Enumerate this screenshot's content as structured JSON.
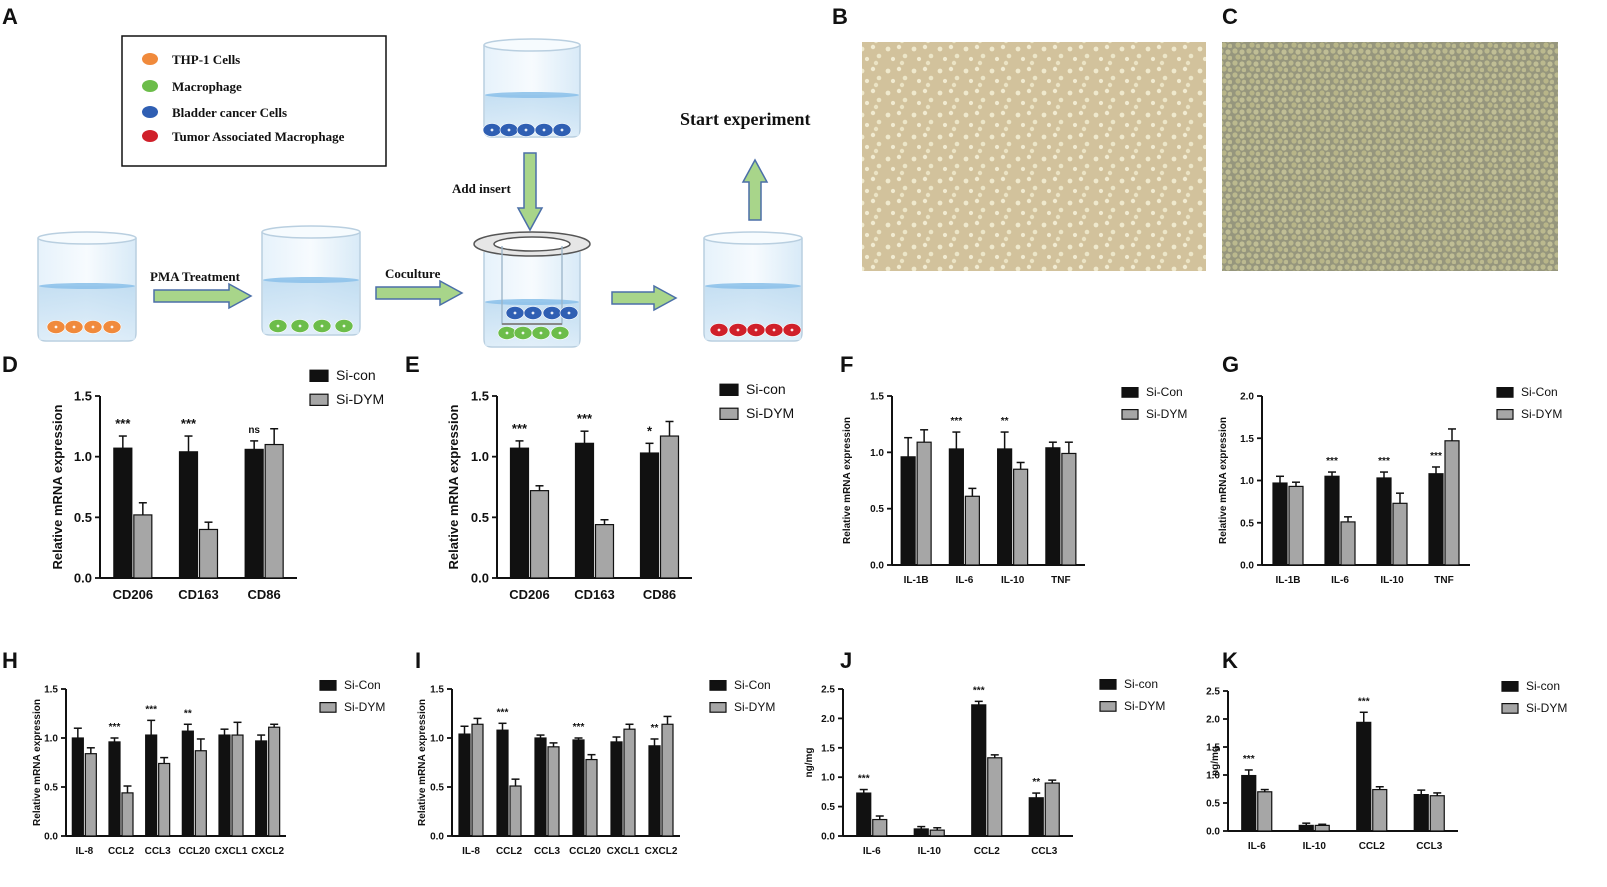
{
  "panel_a": {
    "letter": "A",
    "legend": [
      {
        "label": "THP-1 Cells",
        "color": "#f08a3c"
      },
      {
        "label": "Macrophage",
        "color": "#6cbd4a"
      },
      {
        "label": "Bladder cancer Cells",
        "color": "#2f5fb3"
      },
      {
        "label": "Tumor Associated Macrophage",
        "color": "#d0202a"
      }
    ],
    "labels": {
      "pma": "PMA Treatment",
      "coculture": "Coculture",
      "add_insert": "Add insert",
      "start": "Start experiment"
    }
  },
  "panel_b": {
    "letter": "B"
  },
  "panel_c": {
    "letter": "C"
  },
  "colors": {
    "dark": "#111111",
    "grey": "#a6a6a6",
    "arrow_fill": "#a8d58a",
    "arrow_stroke": "#4b6fa8",
    "micrograph_b": "#d2c29c",
    "micrograph_c": "#9a9a7e"
  },
  "chart_data": [
    {
      "letter": "D",
      "type": "bar",
      "ylabel": "Relative mRNA expression",
      "ylim": [
        0,
        1.5
      ],
      "yticks": [
        "0.0",
        "0.5",
        "1.0",
        "1.5"
      ],
      "categories": [
        "CD206",
        "CD163",
        "CD86"
      ],
      "series": [
        {
          "name": "Si-con",
          "values": [
            1.07,
            1.04,
            1.06
          ],
          "errors": [
            0.1,
            0.13,
            0.07
          ]
        },
        {
          "name": "Si-DYM",
          "values": [
            0.52,
            0.4,
            1.1
          ],
          "errors": [
            0.1,
            0.06,
            0.13
          ]
        }
      ],
      "significance": [
        "***",
        "***",
        "ns"
      ],
      "legend": "right"
    },
    {
      "letter": "E",
      "type": "bar",
      "ylabel": "Relative mRNA expression",
      "ylim": [
        0,
        1.5
      ],
      "yticks": [
        "0.0",
        "0.5",
        "1.0",
        "1.5"
      ],
      "categories": [
        "CD206",
        "CD163",
        "CD86"
      ],
      "series": [
        {
          "name": "Si-con",
          "values": [
            1.07,
            1.11,
            1.03
          ],
          "errors": [
            0.06,
            0.1,
            0.08
          ]
        },
        {
          "name": "Si-DYM",
          "values": [
            0.72,
            0.44,
            1.17
          ],
          "errors": [
            0.04,
            0.04,
            0.12
          ]
        }
      ],
      "significance": [
        "***",
        "***",
        "*"
      ],
      "legend": "right"
    },
    {
      "letter": "F",
      "type": "bar",
      "ylabel": "Relative mRNA expression",
      "ylim": [
        0,
        1.5
      ],
      "yticks": [
        "0.0",
        "0.5",
        "1.0",
        "1.5"
      ],
      "categories": [
        "IL-1B",
        "IL-6",
        "IL-10",
        "TNF"
      ],
      "series": [
        {
          "name": "Si-Con",
          "values": [
            0.96,
            1.03,
            1.03,
            1.04
          ],
          "errors": [
            0.17,
            0.15,
            0.15,
            0.05
          ]
        },
        {
          "name": "Si-DYM",
          "values": [
            1.09,
            0.61,
            0.85,
            0.99
          ],
          "errors": [
            0.11,
            0.07,
            0.06,
            0.1
          ]
        }
      ],
      "significance": [
        "",
        "***",
        "**",
        ""
      ],
      "legend": "right"
    },
    {
      "letter": "G",
      "type": "bar",
      "ylabel": "Relative mRNA expression",
      "ylim": [
        0,
        2.0
      ],
      "yticks": [
        "0.0",
        "0.5",
        "1.0",
        "1.5",
        "2.0"
      ],
      "categories": [
        "IL-1B",
        "IL-6",
        "IL-10",
        "TNF"
      ],
      "series": [
        {
          "name": "Si-Con",
          "values": [
            0.97,
            1.05,
            1.03,
            1.08
          ],
          "errors": [
            0.08,
            0.05,
            0.07,
            0.08
          ]
        },
        {
          "name": "Si-DYM",
          "values": [
            0.93,
            0.51,
            0.73,
            1.47
          ],
          "errors": [
            0.05,
            0.06,
            0.12,
            0.14
          ]
        }
      ],
      "significance": [
        "",
        "***",
        "***",
        "***"
      ],
      "legend": "right"
    },
    {
      "letter": "H",
      "type": "bar",
      "ylabel": "Relative mRNA expression",
      "ylim": [
        0,
        1.5
      ],
      "yticks": [
        "0.0",
        "0.5",
        "1.0",
        "1.5"
      ],
      "categories": [
        "IL-8",
        "CCL2",
        "CCL3",
        "CCL20",
        "CXCL1",
        "CXCL2"
      ],
      "series": [
        {
          "name": "Si-Con",
          "values": [
            1.0,
            0.96,
            1.03,
            1.07,
            1.03,
            0.97
          ],
          "errors": [
            0.1,
            0.04,
            0.15,
            0.07,
            0.06,
            0.06
          ]
        },
        {
          "name": "Si-DYM",
          "values": [
            0.84,
            0.44,
            0.74,
            0.87,
            1.03,
            1.11
          ],
          "errors": [
            0.06,
            0.07,
            0.06,
            0.12,
            0.13,
            0.03
          ]
        }
      ],
      "significance": [
        "",
        "***",
        "***",
        "**",
        "",
        ""
      ],
      "legend": "right"
    },
    {
      "letter": "I",
      "type": "bar",
      "ylabel": "Relative mRNA expression",
      "ylim": [
        0,
        1.5
      ],
      "yticks": [
        "0.0",
        "0.5",
        "1.0",
        "1.5"
      ],
      "categories": [
        "IL-8",
        "CCL2",
        "CCL3",
        "CCL20",
        "CXCL1",
        "CXCL2"
      ],
      "series": [
        {
          "name": "Si-Con",
          "values": [
            1.04,
            1.08,
            1.0,
            0.98,
            0.96,
            0.92
          ],
          "errors": [
            0.08,
            0.07,
            0.03,
            0.02,
            0.05,
            0.07
          ]
        },
        {
          "name": "Si-DYM",
          "values": [
            1.14,
            0.51,
            0.91,
            0.78,
            1.09,
            1.14
          ],
          "errors": [
            0.06,
            0.07,
            0.04,
            0.05,
            0.05,
            0.08
          ]
        }
      ],
      "significance": [
        "",
        "***",
        "",
        "***",
        "",
        "**"
      ],
      "legend": "right"
    },
    {
      "letter": "J",
      "type": "bar",
      "ylabel": "ng/mg",
      "ylim": [
        0,
        2.5
      ],
      "yticks": [
        "0.0",
        "0.5",
        "1.0",
        "1.5",
        "2.0",
        "2.5"
      ],
      "categories": [
        "IL-6",
        "IL-10",
        "CCL2",
        "CCL3"
      ],
      "series": [
        {
          "name": "Si-con",
          "values": [
            0.73,
            0.12,
            2.23,
            0.65
          ],
          "errors": [
            0.06,
            0.04,
            0.06,
            0.08
          ]
        },
        {
          "name": "Si-DYM",
          "values": [
            0.28,
            0.1,
            1.33,
            0.9
          ],
          "errors": [
            0.06,
            0.04,
            0.05,
            0.05
          ]
        }
      ],
      "significance": [
        "***",
        "",
        "***",
        "**"
      ],
      "legend": "right"
    },
    {
      "letter": "K",
      "type": "bar",
      "ylabel": "ng/mg",
      "ylim": [
        0,
        2.5
      ],
      "yticks": [
        "0.0",
        "0.5",
        "1.0",
        "1.5",
        "2.0",
        "2.5"
      ],
      "categories": [
        "IL-6",
        "IL-10",
        "CCL2",
        "CCL3"
      ],
      "series": [
        {
          "name": "Si-con",
          "values": [
            0.99,
            0.1,
            1.94,
            0.65
          ],
          "errors": [
            0.1,
            0.04,
            0.18,
            0.08
          ]
        },
        {
          "name": "Si-DYM",
          "values": [
            0.7,
            0.1,
            0.74,
            0.63
          ],
          "errors": [
            0.04,
            0.02,
            0.05,
            0.05
          ]
        }
      ],
      "significance": [
        "***",
        "",
        "***",
        ""
      ],
      "legend": "right"
    }
  ]
}
